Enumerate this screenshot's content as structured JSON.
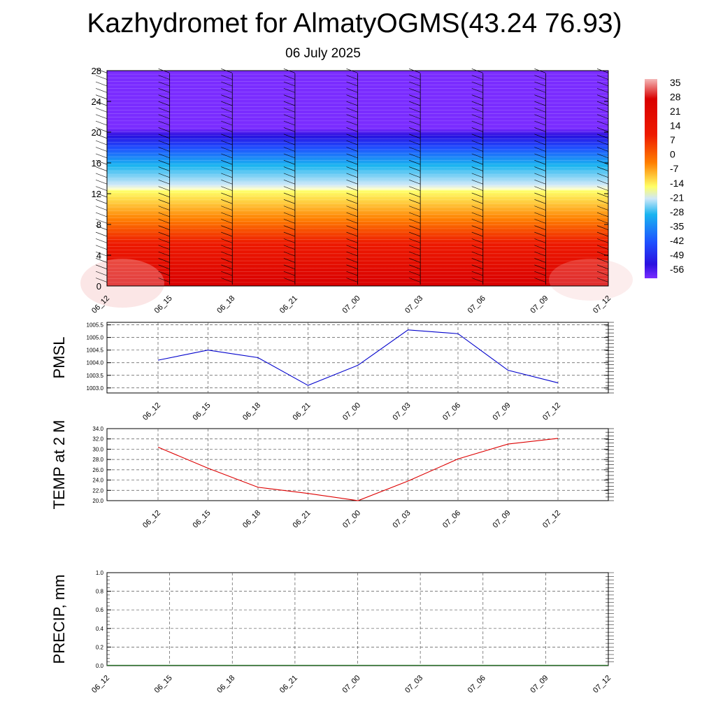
{
  "title": "Kazhydromet for AlmatyOGMS(43.24 76.93)",
  "subtitle": "06 July 2025",
  "chart_data": [
    {
      "type": "heatmap",
      "x_ticks": [
        "06_12",
        "06_15",
        "06_18",
        "06_21",
        "07_00",
        "07_03",
        "07_06",
        "07_09",
        "07_12"
      ],
      "y_ticks": [
        0,
        4,
        8,
        12,
        16,
        20,
        24,
        28
      ],
      "ylim": [
        0,
        28
      ],
      "colorbar_labels": [
        "35",
        "28",
        "21",
        "14",
        "7",
        "0",
        "-7",
        "-14",
        "-21",
        "-28",
        "-35",
        "-42",
        "-49",
        "-56"
      ],
      "colorbar_range": [
        -60,
        38
      ],
      "colors": {
        "hot": "#d90000",
        "red": "#ee1a00",
        "orange": "#ff7f00",
        "yellow": "#ffff66",
        "pale": "#cfe8f8",
        "cyan": "#19b4f0",
        "blue": "#1e50ff",
        "deep_blue": "#2a10e0",
        "violet": "#7a2cff",
        "pink": "#f4b8b8"
      }
    },
    {
      "type": "line",
      "ylabel": "PMSL",
      "x": [
        "06_12",
        "06_15",
        "06_18",
        "06_21",
        "07_00",
        "07_03",
        "07_06",
        "07_09",
        "07_12"
      ],
      "values": [
        1004.1,
        1004.5,
        1004.2,
        1003.1,
        1003.9,
        1005.3,
        1005.15,
        1003.7,
        1003.2
      ],
      "y_ticks": [
        "1003.0",
        "1003.5",
        "1004.0",
        "1004.5",
        "1005.0",
        "1005.5"
      ],
      "ylim": [
        1002.8,
        1005.6
      ],
      "color": "#0000cc",
      "grid": true
    },
    {
      "type": "line",
      "ylabel": "TEMP at 2 M",
      "x": [
        "06_12",
        "06_15",
        "06_18",
        "06_21",
        "07_00",
        "07_03",
        "07_06",
        "07_09",
        "07_12"
      ],
      "values": [
        30.4,
        26.3,
        22.6,
        21.4,
        20.0,
        23.8,
        28.1,
        31.0,
        32.1
      ],
      "y_ticks": [
        "20.0",
        "22.0",
        "24.0",
        "26.0",
        "28.0",
        "30.0",
        "32.0",
        "34.0"
      ],
      "ylim": [
        20,
        34
      ],
      "color": "#dd0000",
      "grid": true
    },
    {
      "type": "bar",
      "ylabel": "PRECIP, mm",
      "x_ticks": [
        "06_12",
        "06_15",
        "06_18",
        "06_21",
        "07_00",
        "07_03",
        "07_06",
        "07_09",
        "07_12"
      ],
      "values": [
        0,
        0,
        0,
        0,
        0,
        0,
        0,
        0,
        0
      ],
      "y_ticks": [
        "0.0",
        "0.2",
        "0.4",
        "0.6",
        "0.8",
        "1.0"
      ],
      "ylim": [
        0,
        1
      ],
      "grid": true
    }
  ]
}
